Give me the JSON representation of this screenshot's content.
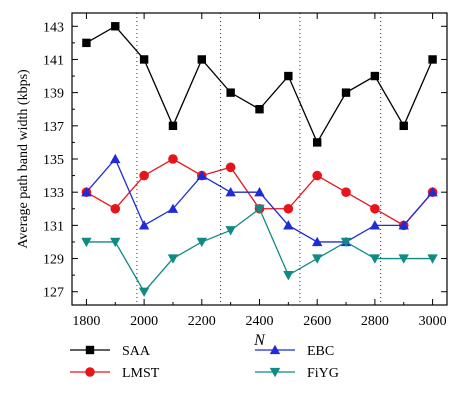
{
  "chart_data": {
    "type": "line",
    "title": "",
    "xlabel": "N",
    "ylabel": "Average path band width (kbps)",
    "x": [
      1800,
      1900,
      2000,
      2100,
      2200,
      2300,
      2400,
      2500,
      2600,
      2700,
      2800,
      2900,
      3000
    ],
    "xlim": [
      1750,
      3050
    ],
    "ylim": [
      126.2,
      143.8
    ],
    "xticks": [
      1800,
      2000,
      2200,
      2400,
      2600,
      2800,
      3000
    ],
    "yticks": [
      127,
      129,
      131,
      133,
      135,
      137,
      139,
      141,
      143
    ],
    "vlines": [
      1975,
      2265,
      2540,
      2820
    ],
    "grid": false,
    "legend_position": "below",
    "series": [
      {
        "name": "SAA",
        "marker": "square",
        "color": "#000000",
        "values": [
          142,
          143,
          141,
          137,
          141,
          139,
          138,
          140,
          136,
          139,
          140,
          137,
          141
        ]
      },
      {
        "name": "LMST",
        "marker": "circle",
        "color": "#e8141c",
        "values": [
          133,
          132,
          134,
          135,
          134,
          134.5,
          132,
          132,
          134,
          133,
          132,
          131,
          133
        ]
      },
      {
        "name": "EBC",
        "marker": "triangle-up",
        "color": "#1f2bd6",
        "values": [
          133,
          135,
          131,
          132,
          134,
          133,
          133,
          131,
          130,
          130,
          131,
          131,
          133
        ]
      },
      {
        "name": "FiYG",
        "marker": "triangle-down",
        "color": "#0f8a84",
        "values": [
          130,
          130,
          127,
          129,
          130,
          130.7,
          132,
          128,
          129,
          130,
          129,
          129,
          129
        ]
      }
    ]
  }
}
